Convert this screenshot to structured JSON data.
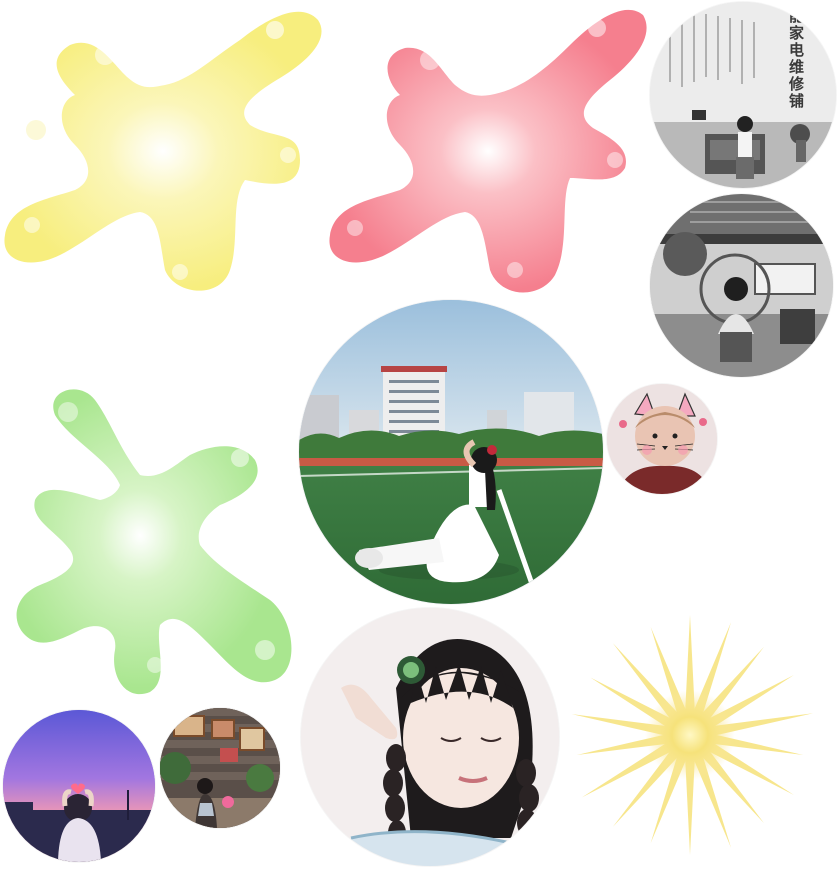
{
  "palette": {
    "yellow": "#f7ee7e",
    "pink": "#f57f8e",
    "green": "#a9e68f",
    "sun": "#f6e27a"
  },
  "splats": [
    {
      "name": "yellow-paint-splat",
      "color": "yellow"
    },
    {
      "name": "pink-paint-splat",
      "color": "pink"
    },
    {
      "name": "green-paint-splat",
      "color": "green"
    }
  ],
  "photos": {
    "shop_sign": {
      "text": "能家电维修铺"
    }
  }
}
